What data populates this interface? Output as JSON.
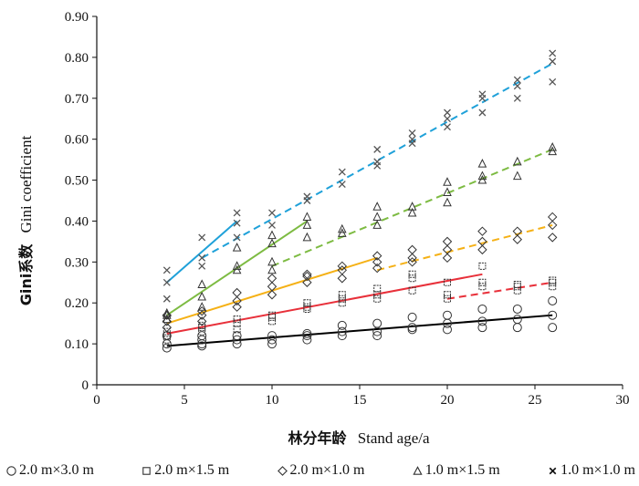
{
  "chart_data": {
    "type": "scatter",
    "title": "",
    "xlabel_cn": "林分年龄",
    "xlabel_en": "Stand age/a",
    "ylabel_cn": "Gini系数",
    "ylabel_en": "Gini coefficient",
    "xlim": [
      0,
      30
    ],
    "ylim": [
      0,
      0.9
    ],
    "xticks": [
      "0",
      "5",
      "10",
      "15",
      "20",
      "25",
      "30"
    ],
    "yticks": [
      "0",
      "0.10",
      "0.20",
      "0.30",
      "0.40",
      "0.50",
      "0.60",
      "0.70",
      "0.80",
      "0.90"
    ],
    "grid": false,
    "legend_position": "bottom",
    "series": [
      {
        "name": "2.0 m×3.0 m",
        "marker": "circle",
        "marker_color": "#333333",
        "line_color": "#000000",
        "points": [
          [
            4,
            0.09
          ],
          [
            4,
            0.1
          ],
          [
            4,
            0.12
          ],
          [
            6,
            0.095
          ],
          [
            6,
            0.1
          ],
          [
            6,
            0.11
          ],
          [
            6,
            0.12
          ],
          [
            8,
            0.1
          ],
          [
            8,
            0.11
          ],
          [
            8,
            0.12
          ],
          [
            10,
            0.1
          ],
          [
            10,
            0.11
          ],
          [
            10,
            0.12
          ],
          [
            12,
            0.11
          ],
          [
            12,
            0.12
          ],
          [
            12,
            0.125
          ],
          [
            14,
            0.12
          ],
          [
            14,
            0.13
          ],
          [
            14,
            0.145
          ],
          [
            16,
            0.12
          ],
          [
            16,
            0.13
          ],
          [
            16,
            0.15
          ],
          [
            18,
            0.135
          ],
          [
            18,
            0.14
          ],
          [
            18,
            0.165
          ],
          [
            20,
            0.135
          ],
          [
            20,
            0.15
          ],
          [
            20,
            0.17
          ],
          [
            22,
            0.14
          ],
          [
            22,
            0.155
          ],
          [
            22,
            0.185
          ],
          [
            24,
            0.14
          ],
          [
            24,
            0.16
          ],
          [
            24,
            0.185
          ],
          [
            26,
            0.14
          ],
          [
            26,
            0.17
          ],
          [
            26,
            0.205
          ]
        ],
        "fit_solid": [
          [
            4,
            0.095
          ],
          [
            26,
            0.17
          ]
        ],
        "fit_dashed": []
      },
      {
        "name": "2.0 m×1.5 m",
        "marker": "square",
        "marker_color": "#333333",
        "line_color": "#e8303a",
        "points": [
          [
            4,
            0.11
          ],
          [
            4,
            0.12
          ],
          [
            4,
            0.13
          ],
          [
            6,
            0.13
          ],
          [
            6,
            0.14
          ],
          [
            6,
            0.145
          ],
          [
            8,
            0.135
          ],
          [
            8,
            0.15
          ],
          [
            8,
            0.16
          ],
          [
            10,
            0.155
          ],
          [
            10,
            0.165
          ],
          [
            10,
            0.17
          ],
          [
            12,
            0.185
          ],
          [
            12,
            0.19
          ],
          [
            12,
            0.2
          ],
          [
            14,
            0.2
          ],
          [
            14,
            0.21
          ],
          [
            14,
            0.22
          ],
          [
            16,
            0.21
          ],
          [
            16,
            0.22
          ],
          [
            16,
            0.235
          ],
          [
            18,
            0.23
          ],
          [
            18,
            0.26
          ],
          [
            18,
            0.27
          ],
          [
            20,
            0.21
          ],
          [
            20,
            0.22
          ],
          [
            20,
            0.25
          ],
          [
            22,
            0.24
          ],
          [
            22,
            0.25
          ],
          [
            22,
            0.29
          ],
          [
            24,
            0.23
          ],
          [
            24,
            0.24
          ],
          [
            24,
            0.245
          ],
          [
            26,
            0.24
          ],
          [
            26,
            0.25
          ],
          [
            26,
            0.255
          ]
        ],
        "fit_solid": [
          [
            4,
            0.125
          ],
          [
            22,
            0.27
          ]
        ],
        "fit_dashed": [
          [
            20,
            0.21
          ],
          [
            26,
            0.25
          ]
        ]
      },
      {
        "name": "2.0 m×1.0 m",
        "marker": "diamond",
        "marker_color": "#333333",
        "line_color": "#f5b116",
        "points": [
          [
            4,
            0.14
          ],
          [
            4,
            0.155
          ],
          [
            4,
            0.17
          ],
          [
            6,
            0.155
          ],
          [
            6,
            0.17
          ],
          [
            6,
            0.18
          ],
          [
            8,
            0.19
          ],
          [
            8,
            0.205
          ],
          [
            8,
            0.225
          ],
          [
            10,
            0.22
          ],
          [
            10,
            0.24
          ],
          [
            10,
            0.26
          ],
          [
            12,
            0.25
          ],
          [
            12,
            0.265
          ],
          [
            12,
            0.27
          ],
          [
            14,
            0.26
          ],
          [
            14,
            0.28
          ],
          [
            14,
            0.29
          ],
          [
            16,
            0.285
          ],
          [
            16,
            0.3
          ],
          [
            16,
            0.315
          ],
          [
            18,
            0.3
          ],
          [
            18,
            0.31
          ],
          [
            18,
            0.33
          ],
          [
            20,
            0.31
          ],
          [
            20,
            0.33
          ],
          [
            20,
            0.35
          ],
          [
            22,
            0.33
          ],
          [
            22,
            0.35
          ],
          [
            22,
            0.375
          ],
          [
            24,
            0.355
          ],
          [
            24,
            0.375
          ],
          [
            26,
            0.36
          ],
          [
            26,
            0.39
          ],
          [
            26,
            0.41
          ]
        ],
        "fit_solid": [
          [
            4,
            0.15
          ],
          [
            16,
            0.31
          ]
        ],
        "fit_dashed": [
          [
            16,
            0.28
          ],
          [
            26,
            0.39
          ]
        ]
      },
      {
        "name": "1.0 m×1.5 m",
        "marker": "triangle",
        "marker_color": "#333333",
        "line_color": "#7dbb42",
        "points": [
          [
            4,
            0.16
          ],
          [
            4,
            0.17
          ],
          [
            4,
            0.175
          ],
          [
            6,
            0.19
          ],
          [
            6,
            0.215
          ],
          [
            6,
            0.245
          ],
          [
            8,
            0.28
          ],
          [
            8,
            0.29
          ],
          [
            8,
            0.335
          ],
          [
            10,
            0.28
          ],
          [
            10,
            0.3
          ],
          [
            10,
            0.345
          ],
          [
            10,
            0.365
          ],
          [
            12,
            0.36
          ],
          [
            12,
            0.39
          ],
          [
            12,
            0.41
          ],
          [
            14,
            0.37
          ],
          [
            14,
            0.38
          ],
          [
            16,
            0.39
          ],
          [
            16,
            0.41
          ],
          [
            16,
            0.435
          ],
          [
            18,
            0.42
          ],
          [
            18,
            0.435
          ],
          [
            20,
            0.445
          ],
          [
            20,
            0.47
          ],
          [
            20,
            0.495
          ],
          [
            22,
            0.5
          ],
          [
            22,
            0.51
          ],
          [
            22,
            0.54
          ],
          [
            24,
            0.51
          ],
          [
            24,
            0.545
          ],
          [
            26,
            0.57
          ],
          [
            26,
            0.58
          ]
        ],
        "fit_solid": [
          [
            4,
            0.17
          ],
          [
            12,
            0.4
          ]
        ],
        "fit_dashed": [
          [
            10,
            0.29
          ],
          [
            26,
            0.575
          ]
        ]
      },
      {
        "name": "1.0 m×1.0 m",
        "marker": "cross",
        "marker_color": "#333333",
        "line_color": "#1fa1d9",
        "points": [
          [
            4,
            0.21
          ],
          [
            4,
            0.25
          ],
          [
            4,
            0.28
          ],
          [
            6,
            0.29
          ],
          [
            6,
            0.31
          ],
          [
            6,
            0.36
          ],
          [
            8,
            0.36
          ],
          [
            8,
            0.395
          ],
          [
            8,
            0.42
          ],
          [
            10,
            0.39
          ],
          [
            10,
            0.42
          ],
          [
            12,
            0.45
          ],
          [
            12,
            0.46
          ],
          [
            14,
            0.49
          ],
          [
            14,
            0.52
          ],
          [
            16,
            0.535
          ],
          [
            16,
            0.545
          ],
          [
            16,
            0.575
          ],
          [
            18,
            0.59
          ],
          [
            18,
            0.6
          ],
          [
            18,
            0.615
          ],
          [
            20,
            0.63
          ],
          [
            20,
            0.65
          ],
          [
            20,
            0.665
          ],
          [
            22,
            0.665
          ],
          [
            22,
            0.7
          ],
          [
            22,
            0.71
          ],
          [
            24,
            0.7
          ],
          [
            24,
            0.73
          ],
          [
            24,
            0.745
          ],
          [
            26,
            0.74
          ],
          [
            26,
            0.79
          ],
          [
            26,
            0.81
          ]
        ],
        "fit_solid": [
          [
            4,
            0.25
          ],
          [
            8,
            0.4
          ]
        ],
        "fit_dashed": [
          [
            6,
            0.31
          ],
          [
            26,
            0.785
          ]
        ]
      }
    ]
  }
}
